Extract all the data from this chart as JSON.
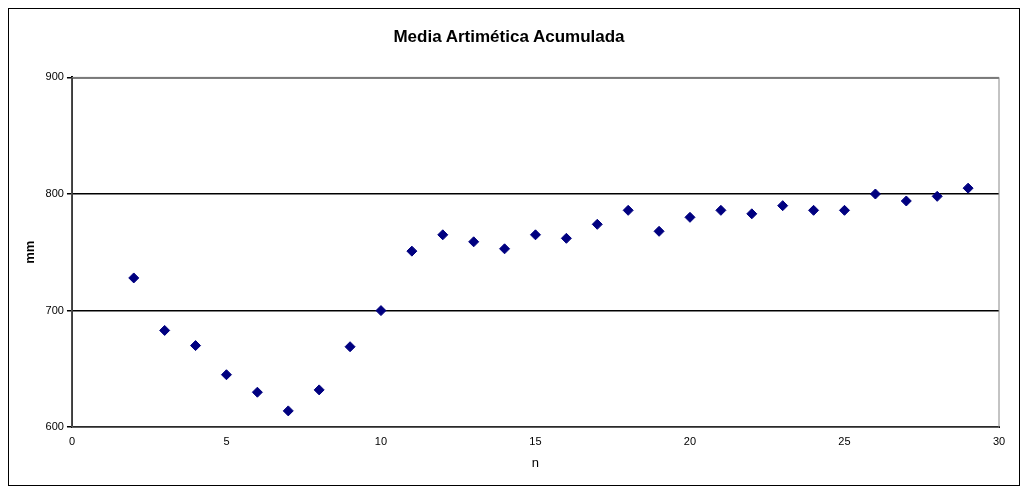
{
  "chart_data": {
    "type": "scatter",
    "title": "Media Artimética Acumulada",
    "xlabel": "n",
    "ylabel": "mm",
    "x": [
      2,
      3,
      4,
      5,
      6,
      7,
      8,
      9,
      10,
      11,
      12,
      13,
      14,
      15,
      16,
      17,
      18,
      19,
      20,
      21,
      22,
      23,
      24,
      25,
      26,
      27,
      28,
      29
    ],
    "series": [
      {
        "color": "#000080",
        "values": [
          728,
          683,
          670,
          645,
          630,
          614,
          632,
          669,
          700,
          751,
          765,
          759,
          753,
          765,
          762,
          774,
          786,
          768,
          780,
          786,
          783,
          790,
          786,
          786,
          800,
          794,
          798,
          805
        ]
      }
    ],
    "xlim": [
      0,
      30
    ],
    "xticks": [
      0,
      5,
      10,
      15,
      20,
      25,
      30
    ],
    "ylim": [
      600,
      900
    ],
    "yticks": [
      600,
      700,
      800,
      900
    ],
    "grid": "y",
    "legend": false,
    "marker": "diamond"
  }
}
